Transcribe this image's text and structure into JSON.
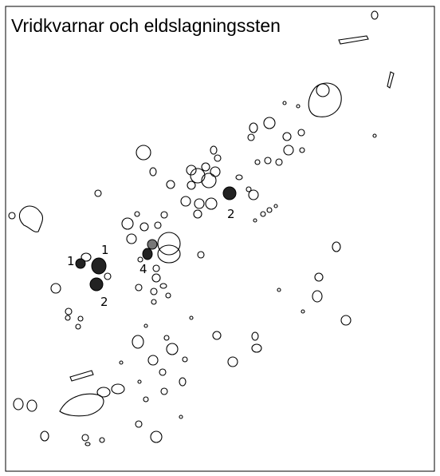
{
  "title": "Vridkvarnar och eldslagningssten",
  "labels": [
    "1",
    "1",
    "2",
    "4",
    "2"
  ]
}
